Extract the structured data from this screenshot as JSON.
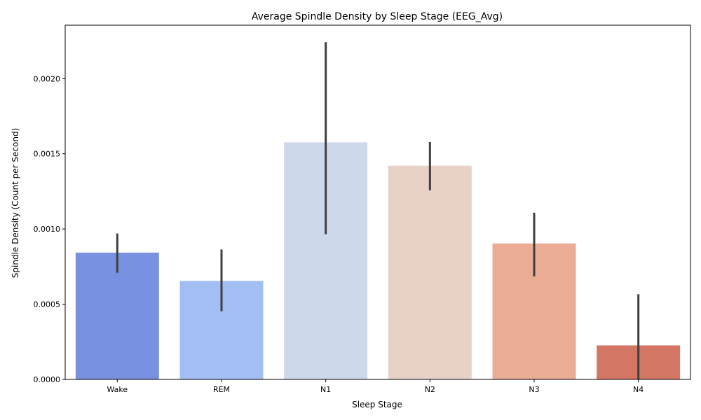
{
  "chart_data": {
    "type": "bar",
    "title": "Average Spindle Density by Sleep Stage (EEG_Avg)",
    "xlabel": "Sleep Stage",
    "ylabel": "Spindle Density (Count per Second)",
    "categories": [
      "Wake",
      "REM",
      "N1",
      "N2",
      "N3",
      "N4"
    ],
    "values": [
      0.000843,
      0.000655,
      0.001576,
      0.001421,
      0.000904,
      0.000226
    ],
    "error_low": [
      0.000709,
      0.000453,
      0.000965,
      0.001257,
      0.000685,
      0.0
    ],
    "error_high": [
      0.00097,
      0.000864,
      0.002242,
      0.001578,
      0.001108,
      0.000566
    ],
    "colors": [
      "#7891e0",
      "#a2bef3",
      "#cdd8ea",
      "#e8d2c8",
      "#ebac95",
      "#d47664"
    ],
    "error_color": "#3f3f3f",
    "ylim": [
      0,
      0.002355
    ],
    "yticks": [
      0.0,
      0.0005,
      0.001,
      0.0015,
      0.002
    ],
    "ytick_labels": [
      "0.0000",
      "0.0005",
      "0.0010",
      "0.0015",
      "0.0020"
    ],
    "grid": false,
    "legend": false
  }
}
